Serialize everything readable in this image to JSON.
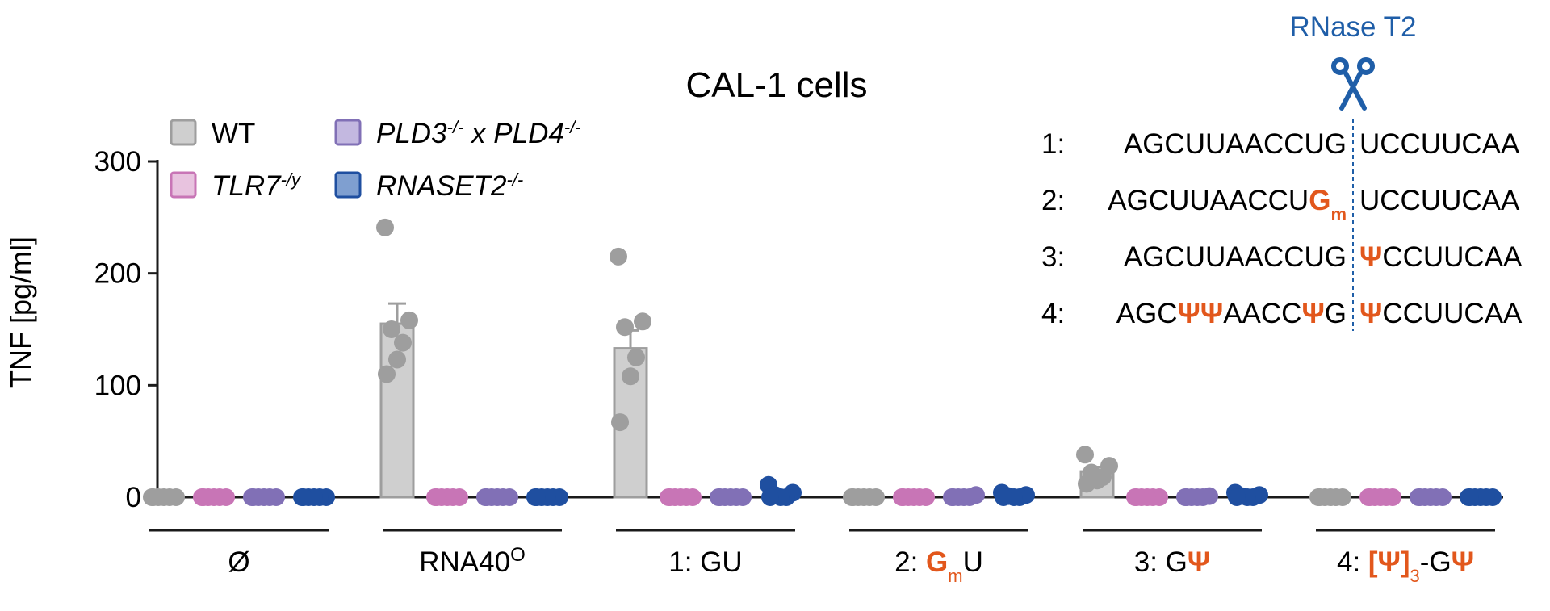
{
  "chart_data": {
    "type": "bar",
    "title": "CAL-1 cells",
    "ylabel": "TNF [pg/ml]",
    "ylim": [
      0,
      300
    ],
    "yticks": [
      0,
      100,
      200,
      300
    ],
    "groups": [
      {
        "label": "Ø"
      },
      {
        "label": "RNA40",
        "sup": "O"
      },
      {
        "label": "1: GU"
      },
      {
        "label_parts": [
          {
            "text": "2: "
          },
          {
            "text": "G",
            "orange": true
          },
          {
            "text": "m",
            "orange": true,
            "sub": true
          },
          {
            "text": "U"
          }
        ]
      },
      {
        "label_parts": [
          {
            "text": "3: G"
          },
          {
            "text": "Ψ",
            "orange": true
          }
        ]
      },
      {
        "label_parts": [
          {
            "text": "4: "
          },
          {
            "text": "[Ψ]",
            "orange": true
          },
          {
            "text": "3",
            "orange": true,
            "sub": true
          },
          {
            "text": "-G"
          },
          {
            "text": "Ψ",
            "orange": true
          }
        ]
      }
    ],
    "legend": [
      {
        "parts": [
          {
            "text": "WT"
          }
        ],
        "color": "#9e9e9e",
        "fill": "#cfcfcf"
      },
      {
        "parts": [
          {
            "text": "PLD3",
            "italic": true
          },
          {
            "text": "-/-",
            "sup": true,
            "italic": true
          },
          {
            "text": " x ",
            "italic": true
          },
          {
            "text": "PLD4",
            "italic": true
          },
          {
            "text": "-/-",
            "sup": true,
            "italic": true
          }
        ],
        "color": "#8170b6",
        "fill": "#c3b8e0"
      },
      {
        "parts": [
          {
            "text": "TLR7",
            "italic": true
          },
          {
            "text": "-/y",
            "sup": true,
            "italic": true
          }
        ],
        "color": "#c875b6",
        "fill": "#e8c3df"
      },
      {
        "parts": [
          {
            "text": "RNASET2",
            "italic": true
          },
          {
            "text": "-/-",
            "sup": true,
            "italic": true
          }
        ],
        "color": "#1f4fa0",
        "fill": "#7f9fd0"
      }
    ],
    "series": [
      {
        "name": "WT",
        "means": [
          0,
          155,
          133,
          0,
          23,
          0
        ],
        "errors": [
          0,
          18,
          16,
          0,
          4,
          0
        ],
        "points": [
          [
            0,
            0,
            0,
            0,
            0,
            0
          ],
          [
            241,
            158,
            150,
            138,
            123,
            110
          ],
          [
            215,
            157,
            152,
            125,
            108,
            67
          ],
          [
            0,
            0,
            0,
            0,
            0,
            0
          ],
          [
            38,
            28,
            22,
            18,
            15,
            12
          ],
          [
            0,
            0,
            0,
            0,
            0,
            0
          ]
        ]
      },
      {
        "name": "TLR7-/y",
        "means": [
          0,
          0,
          0,
          0,
          0,
          0
        ],
        "errors": [
          0,
          0,
          0,
          0,
          0,
          0
        ],
        "points": [
          [
            0,
            0,
            0,
            0,
            0,
            0
          ],
          [
            0,
            0,
            0,
            0,
            0,
            0
          ],
          [
            0,
            0,
            0,
            0,
            0,
            0
          ],
          [
            0,
            0,
            0,
            0,
            0,
            0
          ],
          [
            0,
            0,
            0,
            0,
            0,
            0
          ],
          [
            0,
            0,
            0,
            0,
            0,
            0
          ]
        ]
      },
      {
        "name": "PLD3-/- x PLD4-/-",
        "means": [
          0,
          0,
          0,
          0,
          0,
          0
        ],
        "errors": [
          0,
          0,
          0,
          0,
          0,
          0
        ],
        "points": [
          [
            0,
            0,
            0,
            0,
            0,
            0
          ],
          [
            0,
            0,
            0,
            0,
            0,
            0
          ],
          [
            0,
            0,
            0,
            0,
            0,
            0
          ],
          [
            0,
            2,
            0,
            0,
            0,
            0
          ],
          [
            0,
            1,
            0,
            0,
            0,
            0
          ],
          [
            0,
            0,
            0,
            0,
            0,
            0
          ]
        ]
      },
      {
        "name": "RNASET2-/-",
        "means": [
          0,
          0,
          0,
          0,
          0,
          0
        ],
        "errors": [
          0,
          0,
          0,
          0,
          0,
          0
        ],
        "points": [
          [
            0,
            0,
            0,
            0,
            0,
            0
          ],
          [
            0,
            0,
            0,
            0,
            0,
            0
          ],
          [
            11,
            4,
            2,
            0,
            0,
            0
          ],
          [
            4,
            2,
            1,
            0,
            0,
            0
          ],
          [
            4,
            2,
            1,
            0,
            0,
            0
          ],
          [
            0,
            0,
            0,
            0,
            0,
            0
          ]
        ]
      }
    ],
    "inset": {
      "enzyme_label": "RNase T2",
      "sequences": [
        {
          "prefix": "1:",
          "left": [
            {
              "text": "AGCUUAACCUG"
            }
          ],
          "right": [
            {
              "text": "UCCUUCAA"
            }
          ]
        },
        {
          "prefix": "2:",
          "left": [
            {
              "text": "AGCUUAACCU"
            },
            {
              "text": "G",
              "orange": true
            },
            {
              "text": "m",
              "orange": true,
              "sub": true
            }
          ],
          "right": [
            {
              "text": "UCCUUCAA"
            }
          ]
        },
        {
          "prefix": "3:",
          "left": [
            {
              "text": "AGCUUAACCUG"
            }
          ],
          "right": [
            {
              "text": "Ψ",
              "orange": true
            },
            {
              "text": "CCUUCAA"
            }
          ]
        },
        {
          "prefix": "4:",
          "left": [
            {
              "text": "AGC"
            },
            {
              "text": "ΨΨ",
              "orange": true
            },
            {
              "text": "AACC"
            },
            {
              "text": "Ψ",
              "orange": true
            },
            {
              "text": "G"
            }
          ],
          "right": [
            {
              "text": "Ψ",
              "orange": true
            },
            {
              "text": "CCUUCAA"
            }
          ]
        }
      ]
    }
  }
}
